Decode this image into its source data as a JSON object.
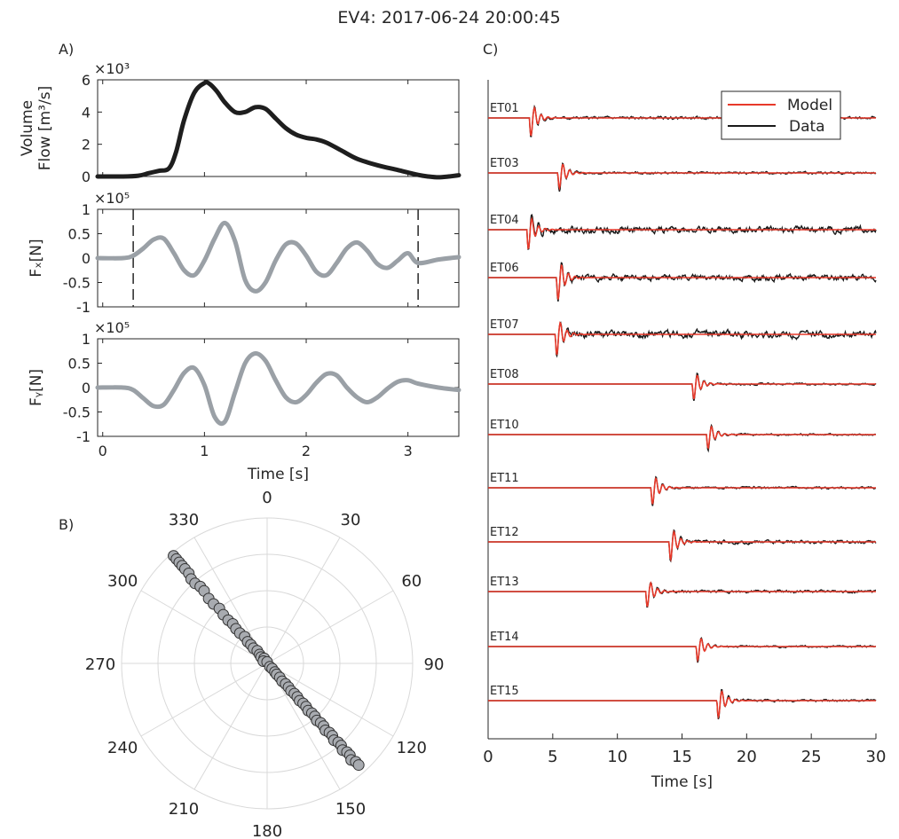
{
  "figure": {
    "title": "EV4: 2017-06-24 20:00:45",
    "panel_labels": {
      "a": "A)",
      "b": "B)",
      "c": "C)"
    }
  },
  "colors": {
    "flow": "#1e1e1e",
    "force": "#9aa0a6",
    "model": "#e8392a",
    "data": "#1a1a1a",
    "axis": "#262626",
    "polar_grid": "#d9d9d9",
    "polar_marker_fill": "#a8abb0",
    "polar_marker_edge": "#333333"
  },
  "chart_data": [
    {
      "id": "flow",
      "type": "line",
      "ylabel_lines": [
        "Volume",
        "Flow [m³/s]"
      ],
      "exponent_label": "×10³",
      "xlim": [
        -0.05,
        3.5
      ],
      "ylim": [
        0,
        6
      ],
      "yticks": [
        0,
        2,
        4,
        6
      ],
      "ytick_labels": [
        "0",
        "2",
        "4",
        "6"
      ],
      "series": [
        {
          "x": [
            -0.05,
            0.2,
            0.35,
            0.45,
            0.55,
            0.65,
            0.72,
            0.8,
            0.9,
            1.0,
            1.05,
            1.12,
            1.2,
            1.3,
            1.4,
            1.5,
            1.6,
            1.7,
            1.8,
            1.9,
            2.0,
            2.1,
            2.2,
            2.35,
            2.5,
            2.7,
            2.9,
            3.1,
            3.2,
            3.3,
            3.4,
            3.5
          ],
          "y": [
            0.0,
            0.0,
            0.05,
            0.2,
            0.35,
            0.5,
            1.5,
            3.5,
            5.2,
            5.8,
            5.75,
            5.3,
            4.6,
            4.0,
            4.0,
            4.3,
            4.2,
            3.6,
            3.0,
            2.6,
            2.4,
            2.3,
            2.1,
            1.6,
            1.1,
            0.7,
            0.4,
            0.1,
            0.0,
            -0.05,
            0.0,
            0.08
          ]
        }
      ]
    },
    {
      "id": "fx",
      "type": "line",
      "ylabel": "Fₓ[N]",
      "exponent_label": "×10⁵",
      "xlim": [
        -0.05,
        3.5
      ],
      "ylim": [
        -1,
        1
      ],
      "yticks": [
        -1,
        -0.5,
        0,
        0.5,
        1
      ],
      "ytick_labels": [
        "-1",
        "-0.5",
        "0",
        "0.5",
        "1"
      ],
      "window_x": [
        0.3,
        3.1
      ],
      "series": [
        {
          "x": [
            -0.05,
            0.2,
            0.3,
            0.4,
            0.5,
            0.6,
            0.7,
            0.8,
            0.9,
            1.0,
            1.1,
            1.2,
            1.3,
            1.4,
            1.5,
            1.6,
            1.7,
            1.8,
            1.9,
            2.0,
            2.1,
            2.2,
            2.3,
            2.4,
            2.5,
            2.6,
            2.7,
            2.8,
            2.9,
            3.0,
            3.1,
            3.3,
            3.5
          ],
          "y": [
            0.0,
            0.0,
            0.05,
            0.2,
            0.38,
            0.4,
            0.1,
            -0.25,
            -0.35,
            -0.05,
            0.4,
            0.72,
            0.35,
            -0.45,
            -0.68,
            -0.5,
            -0.05,
            0.28,
            0.3,
            0.05,
            -0.28,
            -0.35,
            -0.1,
            0.2,
            0.32,
            0.15,
            -0.12,
            -0.2,
            -0.05,
            0.1,
            -0.1,
            -0.03,
            0.02
          ]
        }
      ]
    },
    {
      "id": "fy",
      "type": "line",
      "ylabel": "Fᵧ[N]",
      "exponent_label": "×10⁵",
      "xlim": [
        -0.05,
        3.5
      ],
      "ylim": [
        -1,
        1
      ],
      "yticks": [
        -1,
        -0.5,
        0,
        0.5,
        1
      ],
      "ytick_labels": [
        "-1",
        "-0.5",
        "0",
        "0.5",
        "1"
      ],
      "xticks": [
        0,
        1,
        2,
        3
      ],
      "xtick_labels": [
        "0",
        "1",
        "2",
        "3"
      ],
      "xlabel": "Time [s]",
      "series": [
        {
          "x": [
            -0.05,
            0.2,
            0.3,
            0.4,
            0.5,
            0.6,
            0.7,
            0.8,
            0.9,
            1.0,
            1.1,
            1.2,
            1.3,
            1.4,
            1.5,
            1.6,
            1.7,
            1.8,
            1.9,
            2.0,
            2.1,
            2.2,
            2.3,
            2.4,
            2.5,
            2.6,
            2.7,
            2.8,
            2.9,
            3.0,
            3.1,
            3.3,
            3.5
          ],
          "y": [
            0.0,
            0.0,
            -0.05,
            -0.22,
            -0.38,
            -0.35,
            -0.05,
            0.3,
            0.4,
            0.05,
            -0.6,
            -0.7,
            -0.1,
            0.5,
            0.7,
            0.55,
            0.15,
            -0.2,
            -0.3,
            -0.15,
            0.1,
            0.28,
            0.25,
            0.0,
            -0.2,
            -0.3,
            -0.2,
            -0.02,
            0.12,
            0.15,
            0.08,
            0.0,
            -0.05
          ]
        }
      ]
    },
    {
      "id": "polar",
      "type": "scatter",
      "subtype": "polar",
      "angle_ticks": [
        0,
        30,
        60,
        90,
        120,
        150,
        180,
        210,
        240,
        270,
        300,
        330
      ],
      "angle_tick_labels": [
        "0",
        "30",
        "60",
        "90",
        "120",
        "150",
        "180",
        "210",
        "240",
        "270",
        "300",
        "330"
      ],
      "rings": 4,
      "points": [
        {
          "angle": 319,
          "r": 0.98
        },
        {
          "angle": 319,
          "r": 0.95
        },
        {
          "angle": 319,
          "r": 0.92
        },
        {
          "angle": 319,
          "r": 0.89
        },
        {
          "angle": 319,
          "r": 0.86
        },
        {
          "angle": 319,
          "r": 0.82
        },
        {
          "angle": 318,
          "r": 0.78
        },
        {
          "angle": 318,
          "r": 0.74
        },
        {
          "angle": 319,
          "r": 0.7
        },
        {
          "angle": 319,
          "r": 0.66
        },
        {
          "angle": 318,
          "r": 0.6
        },
        {
          "angle": 318,
          "r": 0.55
        },
        {
          "angle": 319,
          "r": 0.5
        },
        {
          "angle": 318,
          "r": 0.45
        },
        {
          "angle": 318,
          "r": 0.4
        },
        {
          "angle": 319,
          "r": 0.36
        },
        {
          "angle": 318,
          "r": 0.32
        },
        {
          "angle": 318,
          "r": 0.28
        },
        {
          "angle": 320,
          "r": 0.24
        },
        {
          "angle": 318,
          "r": 0.2
        },
        {
          "angle": 319,
          "r": 0.17
        },
        {
          "angle": 318,
          "r": 0.14
        },
        {
          "angle": 322,
          "r": 0.11
        },
        {
          "angle": 320,
          "r": 0.08
        },
        {
          "angle": 316,
          "r": 0.06
        },
        {
          "angle": 330,
          "r": 0.04
        },
        {
          "angle": 300,
          "r": 0.03
        },
        {
          "angle": 0,
          "r": 0.01
        },
        {
          "angle": 140,
          "r": 0.03
        },
        {
          "angle": 136,
          "r": 0.05
        },
        {
          "angle": 138,
          "r": 0.08
        },
        {
          "angle": 139,
          "r": 0.1
        },
        {
          "angle": 138,
          "r": 0.13
        },
        {
          "angle": 140,
          "r": 0.16
        },
        {
          "angle": 138,
          "r": 0.19
        },
        {
          "angle": 138,
          "r": 0.22
        },
        {
          "angle": 139,
          "r": 0.25
        },
        {
          "angle": 138,
          "r": 0.28
        },
        {
          "angle": 138,
          "r": 0.31
        },
        {
          "angle": 139,
          "r": 0.34
        },
        {
          "angle": 138,
          "r": 0.37
        },
        {
          "angle": 138,
          "r": 0.4
        },
        {
          "angle": 139,
          "r": 0.43
        },
        {
          "angle": 138,
          "r": 0.46
        },
        {
          "angle": 138,
          "r": 0.49
        },
        {
          "angle": 139,
          "r": 0.52
        },
        {
          "angle": 138,
          "r": 0.55
        },
        {
          "angle": 138,
          "r": 0.58
        },
        {
          "angle": 139,
          "r": 0.61
        },
        {
          "angle": 138,
          "r": 0.64
        },
        {
          "angle": 138,
          "r": 0.67
        },
        {
          "angle": 139,
          "r": 0.7
        },
        {
          "angle": 138,
          "r": 0.73
        },
        {
          "angle": 138,
          "r": 0.76
        },
        {
          "angle": 139,
          "r": 0.79
        },
        {
          "angle": 138,
          "r": 0.82
        },
        {
          "angle": 138,
          "r": 0.85
        },
        {
          "angle": 139,
          "r": 0.88
        },
        {
          "angle": 138,
          "r": 0.91
        },
        {
          "angle": 138,
          "r": 0.94
        }
      ]
    },
    {
      "id": "seismograms",
      "type": "line",
      "xlim": [
        0,
        30
      ],
      "xticks": [
        0,
        5,
        10,
        15,
        20,
        25,
        30
      ],
      "xtick_labels": [
        "0",
        "5",
        "10",
        "15",
        "20",
        "25",
        "30"
      ],
      "xlabel": "Time [s]",
      "legend": {
        "placement": "top-right",
        "entries": [
          "Model",
          "Data"
        ]
      },
      "stations": [
        {
          "name": "ET01",
          "onset": 3.2,
          "amp": 1.3,
          "noise": 0.12
        },
        {
          "name": "ET03",
          "onset": 5.4,
          "amp": 1.1,
          "noise": 0.1
        },
        {
          "name": "ET04",
          "onset": 3.0,
          "amp": 1.4,
          "noise": 0.28
        },
        {
          "name": "ET06",
          "onset": 5.3,
          "amp": 1.6,
          "noise": 0.25
        },
        {
          "name": "ET07",
          "onset": 5.2,
          "amp": 1.5,
          "noise": 0.3
        },
        {
          "name": "ET08",
          "onset": 15.8,
          "amp": 1.1,
          "noise": 0.08
        },
        {
          "name": "ET10",
          "onset": 16.9,
          "amp": 1.0,
          "noise": 0.08
        },
        {
          "name": "ET11",
          "onset": 12.6,
          "amp": 1.2,
          "noise": 0.1
        },
        {
          "name": "ET12",
          "onset": 14.0,
          "amp": 1.3,
          "noise": 0.15
        },
        {
          "name": "ET13",
          "onset": 12.2,
          "amp": 1.1,
          "noise": 0.12
        },
        {
          "name": "ET14",
          "onset": 16.1,
          "amp": 1.0,
          "noise": 0.08
        },
        {
          "name": "ET15",
          "onset": 17.7,
          "amp": 1.2,
          "noise": 0.1
        }
      ]
    }
  ]
}
